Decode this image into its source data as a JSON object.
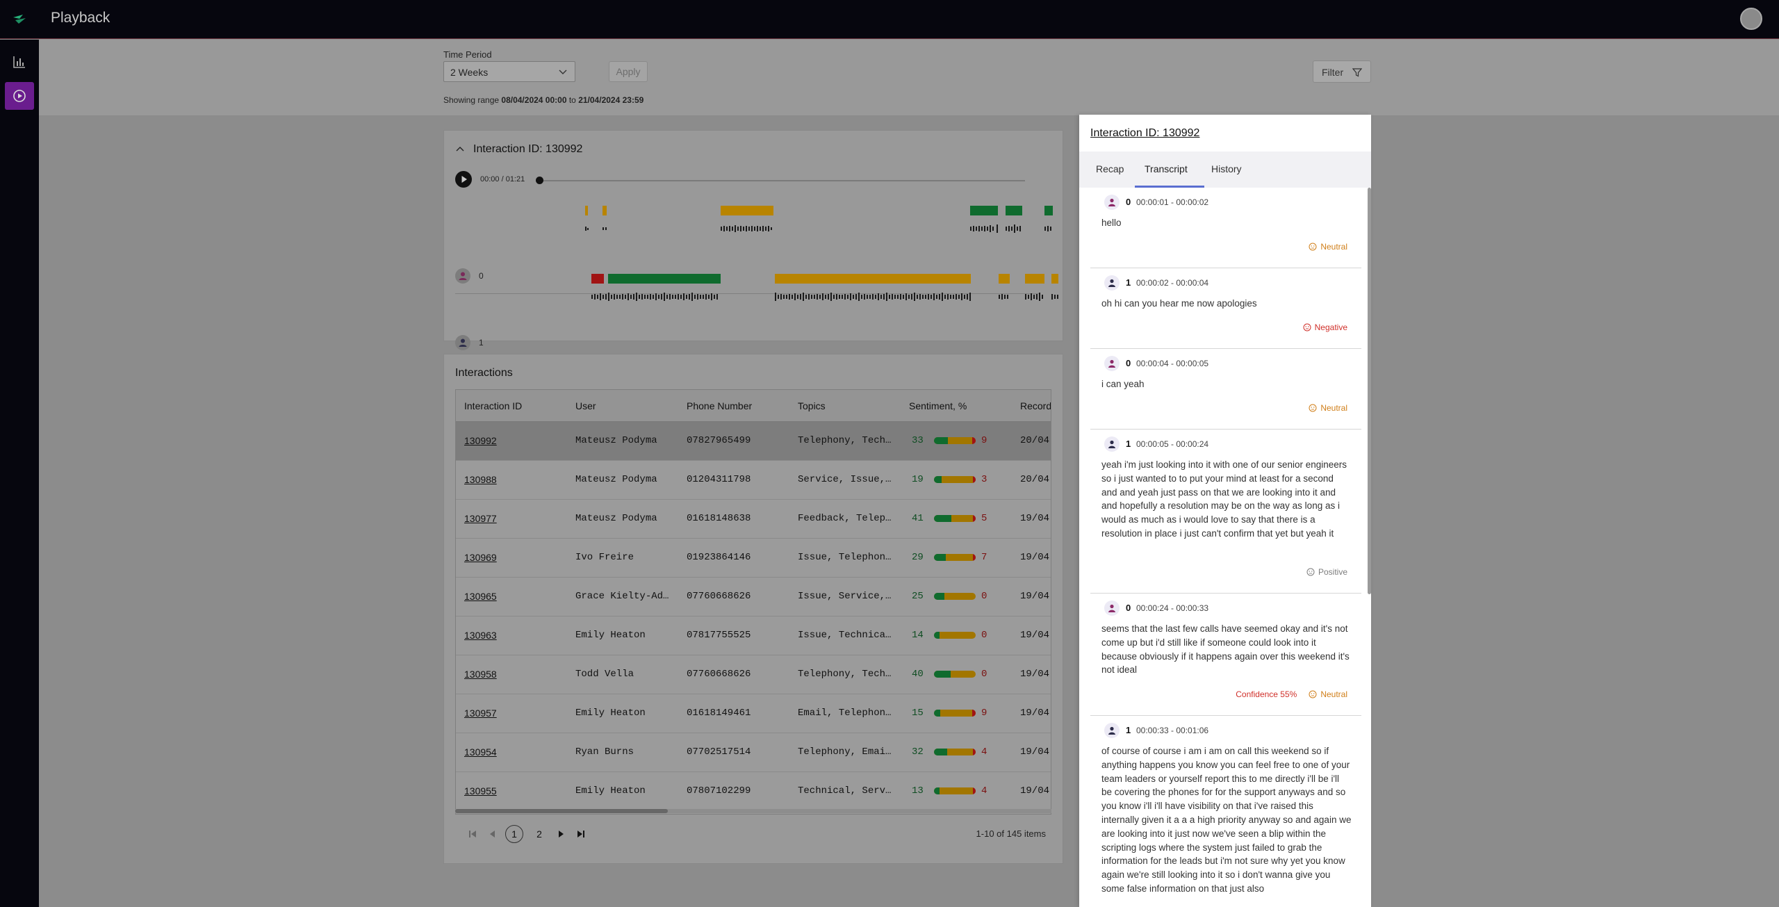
{
  "app": {
    "title": "Playback"
  },
  "filters": {
    "time_period_label": "Time Period",
    "time_period_value": "2 Weeks",
    "apply_label": "Apply",
    "range_prefix": "Showing range",
    "range_start": "08/04/2024 00:00",
    "range_mid": "to",
    "range_end": "21/04/2024 23:59",
    "filter_label": "Filter"
  },
  "player": {
    "title": "Interaction ID: 130992",
    "time": "00:00 / 01:21",
    "speakers": [
      "0",
      "1"
    ]
  },
  "interactions": {
    "title": "Interactions",
    "columns": [
      "Interaction ID",
      "User",
      "Phone Number",
      "Topics",
      "Sentiment, %",
      "Record"
    ],
    "rows": [
      {
        "id": "130992",
        "user": "Mateusz Podyma",
        "phone": "07827965499",
        "topics": "Telephony, Tech…",
        "pos": "33",
        "neg": "9",
        "date": "20/04",
        "pos_frac": 0.33,
        "neg_frac": 0.09
      },
      {
        "id": "130988",
        "user": "Mateusz Podyma",
        "phone": "01204311798",
        "topics": "Service, Issue,…",
        "pos": "19",
        "neg": "3",
        "date": "20/04",
        "pos_frac": 0.19,
        "neg_frac": 0.03
      },
      {
        "id": "130977",
        "user": "Mateusz Podyma",
        "phone": "01618148638",
        "topics": "Feedback, Telep…",
        "pos": "41",
        "neg": "5",
        "date": "19/04",
        "pos_frac": 0.41,
        "neg_frac": 0.05
      },
      {
        "id": "130969",
        "user": "Ivo Freire",
        "phone": "01923864146",
        "topics": "Issue, Telephon…",
        "pos": "29",
        "neg": "7",
        "date": "19/04",
        "pos_frac": 0.29,
        "neg_frac": 0.07
      },
      {
        "id": "130965",
        "user": "Grace Kielty-Ad…",
        "phone": "07760668626",
        "topics": "Issue, Service,…",
        "pos": "25",
        "neg": "0",
        "date": "19/04",
        "pos_frac": 0.25,
        "neg_frac": 0.0
      },
      {
        "id": "130963",
        "user": "Emily Heaton",
        "phone": "07817755525",
        "topics": "Issue, Technica…",
        "pos": "14",
        "neg": "0",
        "date": "19/04",
        "pos_frac": 0.14,
        "neg_frac": 0.0
      },
      {
        "id": "130958",
        "user": "Todd Vella",
        "phone": "07760668626",
        "topics": "Telephony, Tech…",
        "pos": "40",
        "neg": "0",
        "date": "19/04",
        "pos_frac": 0.4,
        "neg_frac": 0.0
      },
      {
        "id": "130957",
        "user": "Emily Heaton",
        "phone": "01618149461",
        "topics": "Email, Telephon…",
        "pos": "15",
        "neg": "9",
        "date": "19/04",
        "pos_frac": 0.15,
        "neg_frac": 0.09
      },
      {
        "id": "130954",
        "user": "Ryan Burns",
        "phone": "07702517514",
        "topics": "Telephony, Emai…",
        "pos": "32",
        "neg": "4",
        "date": "19/04",
        "pos_frac": 0.32,
        "neg_frac": 0.04
      },
      {
        "id": "130955",
        "user": "Emily Heaton",
        "phone": "07807102299",
        "topics": "Technical, Serv…",
        "pos": "13",
        "neg": "4",
        "date": "19/04",
        "pos_frac": 0.13,
        "neg_frac": 0.04
      }
    ],
    "pagination": {
      "current": "1",
      "next": "2",
      "summary": "1-10 of 145 items"
    }
  },
  "panel": {
    "title": "Interaction ID: 130992",
    "tabs": [
      "Recap",
      "Transcript",
      "History"
    ],
    "messages": [
      {
        "speaker": "0",
        "time": "00:00:01 - 00:00:02",
        "text": "hello",
        "sentiment": "Neutral",
        "confidence": ""
      },
      {
        "speaker": "1",
        "time": "00:00:02 - 00:00:04",
        "text": "oh hi can you hear me now apologies",
        "sentiment": "Negative",
        "confidence": ""
      },
      {
        "speaker": "0",
        "time": "00:00:04 - 00:00:05",
        "text": "i can yeah",
        "sentiment": "Neutral",
        "confidence": ""
      },
      {
        "speaker": "1",
        "time": "00:00:05 - 00:00:24",
        "text": "yeah i'm just looking into it with one of our senior engineers so i just wanted to to put your mind at least for a second and and yeah just pass on that we are looking into it and and hopefully a resolution may be on the way as long as i would as much as i would love to say that there is a resolution in place i just can't confirm that yet but yeah it",
        "sentiment": "Positive",
        "confidence": ""
      },
      {
        "speaker": "0",
        "time": "00:00:24 - 00:00:33",
        "text": "seems that the last few calls have seemed okay and it's not come up but i'd still like if someone could look into it because obviously if it happens again over this weekend it's not ideal",
        "sentiment": "Neutral",
        "confidence": "Confidence 55%"
      },
      {
        "speaker": "1",
        "time": "00:00:33 - 00:01:06",
        "text": "of course of course i am i am on call this weekend so if anything happens you know you can feel free to one of your team leaders or yourself report this to me directly i'll be i'll be covering the phones for for the support anyways and so you know i'll i'll have visibility on that i've raised this internally given it a a a high priority anyway so and again we are looking into it just now we've seen a blip within the scripting logs where the system just failed to grab the information for the leads but i'm not sure why yet you know again we're still looking into it so i don't wanna give you some false information on that just also",
        "sentiment": "",
        "confidence": ""
      }
    ]
  },
  "colors": {
    "accent": "#6a1d8e",
    "positive": "#0a7a33",
    "mixed": "#d49a00",
    "negative": "#c41c1c"
  }
}
